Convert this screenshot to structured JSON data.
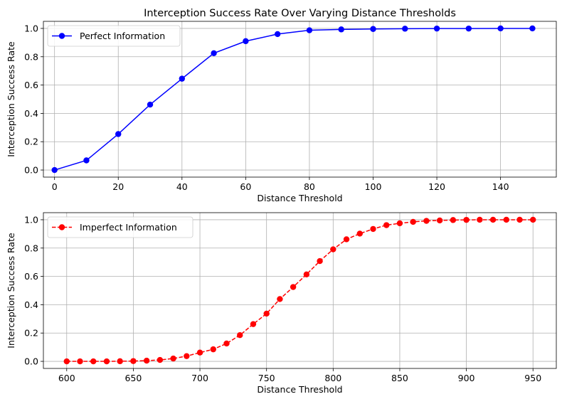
{
  "chart_data": [
    {
      "type": "line",
      "title": "Interception Success Rate Over Varying Distance Thresholds",
      "xlabel": "Distance Threshold",
      "ylabel": "Interception Success Rate",
      "xlim": [
        -3.5,
        157.5
      ],
      "ylim": [
        -0.05,
        1.05
      ],
      "xticks": [
        0,
        20,
        40,
        60,
        80,
        100,
        120,
        140
      ],
      "yticks": [
        0.0,
        0.2,
        0.4,
        0.6,
        0.8,
        1.0
      ],
      "ytick_labels": [
        "0.0",
        "0.2",
        "0.4",
        "0.6",
        "0.8",
        "1.0"
      ],
      "grid": true,
      "legend": "upper-left",
      "series": [
        {
          "name": "Perfect Information",
          "color": "#0000ff",
          "linestyle": "solid",
          "marker": "circle",
          "x": [
            0,
            10,
            20,
            30,
            40,
            50,
            60,
            70,
            80,
            90,
            100,
            110,
            120,
            130,
            140,
            150
          ],
          "y": [
            0.0,
            0.068,
            0.254,
            0.462,
            0.645,
            0.825,
            0.91,
            0.96,
            0.987,
            0.993,
            0.996,
            0.998,
            0.999,
            0.999,
            1.0,
            1.0
          ]
        }
      ]
    },
    {
      "type": "line",
      "title": "",
      "xlabel": "Distance Threshold",
      "ylabel": "Interception Success Rate",
      "xlim": [
        582.5,
        967.5
      ],
      "ylim": [
        -0.05,
        1.05
      ],
      "xticks": [
        600,
        650,
        700,
        750,
        800,
        850,
        900,
        950
      ],
      "yticks": [
        0.0,
        0.2,
        0.4,
        0.6,
        0.8,
        1.0
      ],
      "ytick_labels": [
        "0.0",
        "0.2",
        "0.4",
        "0.6",
        "0.8",
        "1.0"
      ],
      "grid": true,
      "legend": "upper-left",
      "series": [
        {
          "name": "Imperfect Information",
          "color": "#ff0000",
          "linestyle": "dashed",
          "marker": "circle",
          "x": [
            600,
            610,
            620,
            630,
            640,
            650,
            660,
            670,
            680,
            690,
            700,
            710,
            720,
            730,
            740,
            750,
            760,
            770,
            780,
            790,
            800,
            810,
            820,
            830,
            840,
            850,
            860,
            870,
            880,
            890,
            900,
            910,
            920,
            930,
            940,
            950
          ],
          "y": [
            0.0,
            0.0,
            0.0,
            0.0,
            0.001,
            0.002,
            0.005,
            0.01,
            0.02,
            0.037,
            0.062,
            0.085,
            0.126,
            0.185,
            0.263,
            0.337,
            0.44,
            0.525,
            0.614,
            0.708,
            0.791,
            0.862,
            0.902,
            0.935,
            0.962,
            0.975,
            0.985,
            0.992,
            0.995,
            0.998,
            0.999,
            1.0,
            1.0,
            1.0,
            1.0,
            1.0
          ]
        }
      ]
    }
  ]
}
